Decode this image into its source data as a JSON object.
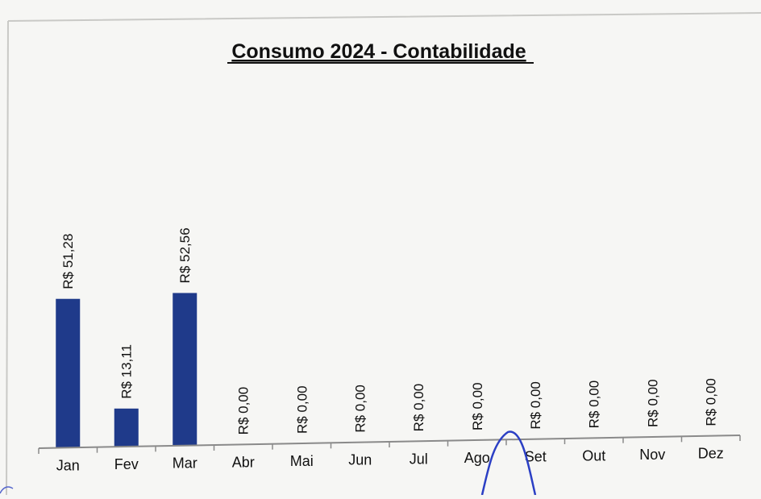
{
  "chart_data": {
    "type": "bar",
    "title": "Consumo 2024 - Contabilidade",
    "xlabel": "",
    "ylabel": "",
    "categories": [
      "Jan",
      "Fev",
      "Mar",
      "Abr",
      "Mai",
      "Jun",
      "Jul",
      "Ago",
      "Set",
      "Out",
      "Nov",
      "Dez"
    ],
    "values": [
      51.28,
      13.11,
      52.56,
      0,
      0,
      0,
      0,
      0,
      0,
      0,
      0,
      0
    ],
    "data_labels": [
      "R$ 51,28",
      "R$ 13,11",
      "R$ 52,56",
      "R$ 0,00",
      "R$ 0,00",
      "R$ 0,00",
      "R$ 0,00",
      "R$ 0,00",
      "R$ 0,00",
      "R$ 0,00",
      "R$ 0,00",
      "R$ 0,00"
    ],
    "ylim": [
      0,
      60
    ],
    "grid": false,
    "legend": "none",
    "bar_color": "#1f3a8a",
    "annotation_color": "#2b3fc4"
  }
}
